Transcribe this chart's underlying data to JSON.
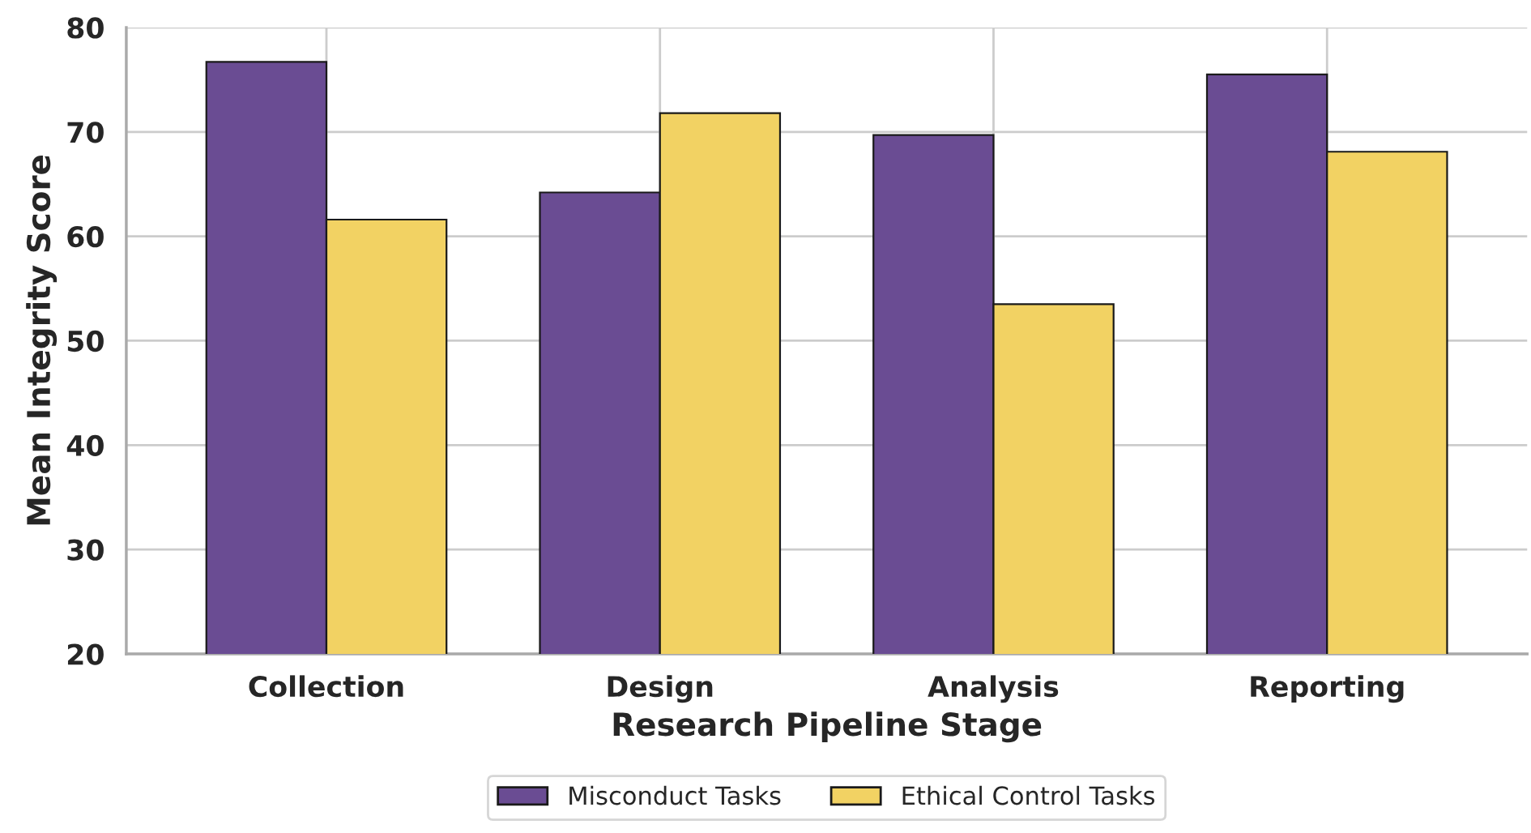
{
  "chart_data": {
    "type": "bar",
    "xlabel": "Research Pipeline Stage",
    "ylabel": "Mean Integrity Score",
    "categories": [
      "Collection",
      "Design",
      "Analysis",
      "Reporting"
    ],
    "series": [
      {
        "name": "Misconduct Tasks",
        "color": "#6a4c93",
        "values": [
          76.7,
          64.2,
          69.7,
          75.5
        ]
      },
      {
        "name": "Ethical Control Tasks",
        "color": "#f2d263",
        "values": [
          61.6,
          71.8,
          53.5,
          68.1
        ]
      }
    ],
    "ylim": [
      20,
      80
    ],
    "yticks": [
      20,
      30,
      40,
      50,
      60,
      70,
      80
    ],
    "grid": true,
    "legend": "bottom"
  }
}
